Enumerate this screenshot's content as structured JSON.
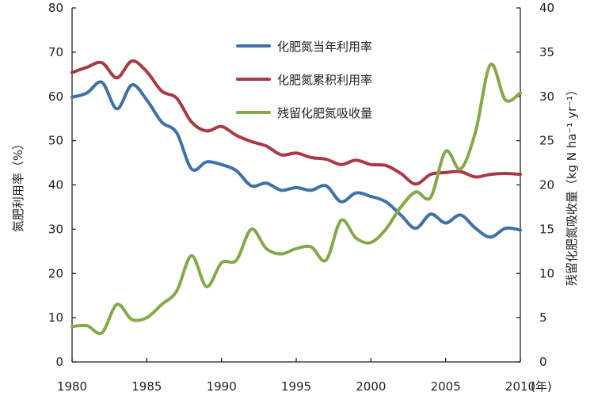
{
  "chart_data": {
    "type": "line",
    "x_unit_label": "(年)",
    "ylabel_left": "氮肥利用率（%）",
    "ylabel_right": "残留化肥氮吸收量（kg N ha⁻¹ yr⁻¹）",
    "xlim": [
      1980,
      2010
    ],
    "ylim_left": [
      0,
      80
    ],
    "ylim_right": [
      0,
      40
    ],
    "x_ticks": [
      1980,
      1985,
      1990,
      1995,
      2000,
      2005,
      2010
    ],
    "y_ticks_left": [
      0,
      10,
      20,
      30,
      40,
      50,
      60,
      70,
      80
    ],
    "y_ticks_right": [
      0,
      5,
      10,
      15,
      20,
      25,
      30,
      35,
      40
    ],
    "grid": false,
    "legend_position": "top-right",
    "series": [
      {
        "name": "化肥氮当年利用率",
        "axis": "left",
        "color": "#3f70a8",
        "points": [
          [
            1980,
            59.8
          ],
          [
            1981,
            60.8
          ],
          [
            1982,
            63.2
          ],
          [
            1983,
            57.2
          ],
          [
            1984,
            62.6
          ],
          [
            1985,
            59.2
          ],
          [
            1986,
            54.2
          ],
          [
            1987,
            51.8
          ],
          [
            1988,
            43.6
          ],
          [
            1989,
            45.2
          ],
          [
            1990,
            44.6
          ],
          [
            1991,
            43.2
          ],
          [
            1992,
            39.8
          ],
          [
            1993,
            40.4
          ],
          [
            1994,
            38.8
          ],
          [
            1995,
            39.4
          ],
          [
            1996,
            38.8
          ],
          [
            1997,
            39.8
          ],
          [
            1998,
            36.2
          ],
          [
            1999,
            38.2
          ],
          [
            2000,
            37.4
          ],
          [
            2001,
            36.2
          ],
          [
            2002,
            33.2
          ],
          [
            2003,
            30.2
          ],
          [
            2004,
            33.4
          ],
          [
            2005,
            31.4
          ],
          [
            2006,
            33.2
          ],
          [
            2007,
            30.2
          ],
          [
            2008,
            28.2
          ],
          [
            2009,
            30.2
          ],
          [
            2010,
            29.8
          ]
        ]
      },
      {
        "name": "化肥氮累积利用率",
        "axis": "left",
        "color": "#a93a45",
        "points": [
          [
            1980,
            65.4
          ],
          [
            1981,
            66.6
          ],
          [
            1982,
            67.6
          ],
          [
            1983,
            64.2
          ],
          [
            1984,
            68.0
          ],
          [
            1985,
            65.6
          ],
          [
            1986,
            61.2
          ],
          [
            1987,
            59.6
          ],
          [
            1988,
            54.2
          ],
          [
            1989,
            52.2
          ],
          [
            1990,
            53.2
          ],
          [
            1991,
            51.2
          ],
          [
            1992,
            49.8
          ],
          [
            1993,
            48.8
          ],
          [
            1994,
            46.8
          ],
          [
            1995,
            47.2
          ],
          [
            1996,
            46.2
          ],
          [
            1997,
            45.8
          ],
          [
            1998,
            44.6
          ],
          [
            1999,
            45.6
          ],
          [
            2000,
            44.6
          ],
          [
            2001,
            44.4
          ],
          [
            2002,
            42.6
          ],
          [
            2003,
            40.2
          ],
          [
            2004,
            42.4
          ],
          [
            2005,
            42.8
          ],
          [
            2006,
            43.0
          ],
          [
            2007,
            41.8
          ],
          [
            2008,
            42.4
          ],
          [
            2009,
            42.6
          ],
          [
            2010,
            42.4
          ]
        ]
      },
      {
        "name": "残留化肥氮吸收量",
        "axis": "right",
        "color": "#85a94a",
        "points": [
          [
            1980,
            4.0
          ],
          [
            1981,
            4.1
          ],
          [
            1982,
            3.3
          ],
          [
            1983,
            6.5
          ],
          [
            1984,
            4.8
          ],
          [
            1985,
            5.0
          ],
          [
            1986,
            6.5
          ],
          [
            1987,
            8.0
          ],
          [
            1988,
            12.0
          ],
          [
            1989,
            8.5
          ],
          [
            1990,
            11.2
          ],
          [
            1991,
            11.5
          ],
          [
            1992,
            15.0
          ],
          [
            1993,
            12.8
          ],
          [
            1994,
            12.2
          ],
          [
            1995,
            12.8
          ],
          [
            1996,
            13.0
          ],
          [
            1997,
            11.5
          ],
          [
            1998,
            16.0
          ],
          [
            1999,
            14.0
          ],
          [
            2000,
            13.5
          ],
          [
            2001,
            15.0
          ],
          [
            2002,
            17.5
          ],
          [
            2003,
            19.2
          ],
          [
            2004,
            18.6
          ],
          [
            2005,
            23.8
          ],
          [
            2006,
            21.8
          ],
          [
            2007,
            26.0
          ],
          [
            2008,
            33.6
          ],
          [
            2009,
            29.6
          ],
          [
            2010,
            30.4
          ]
        ]
      }
    ]
  }
}
